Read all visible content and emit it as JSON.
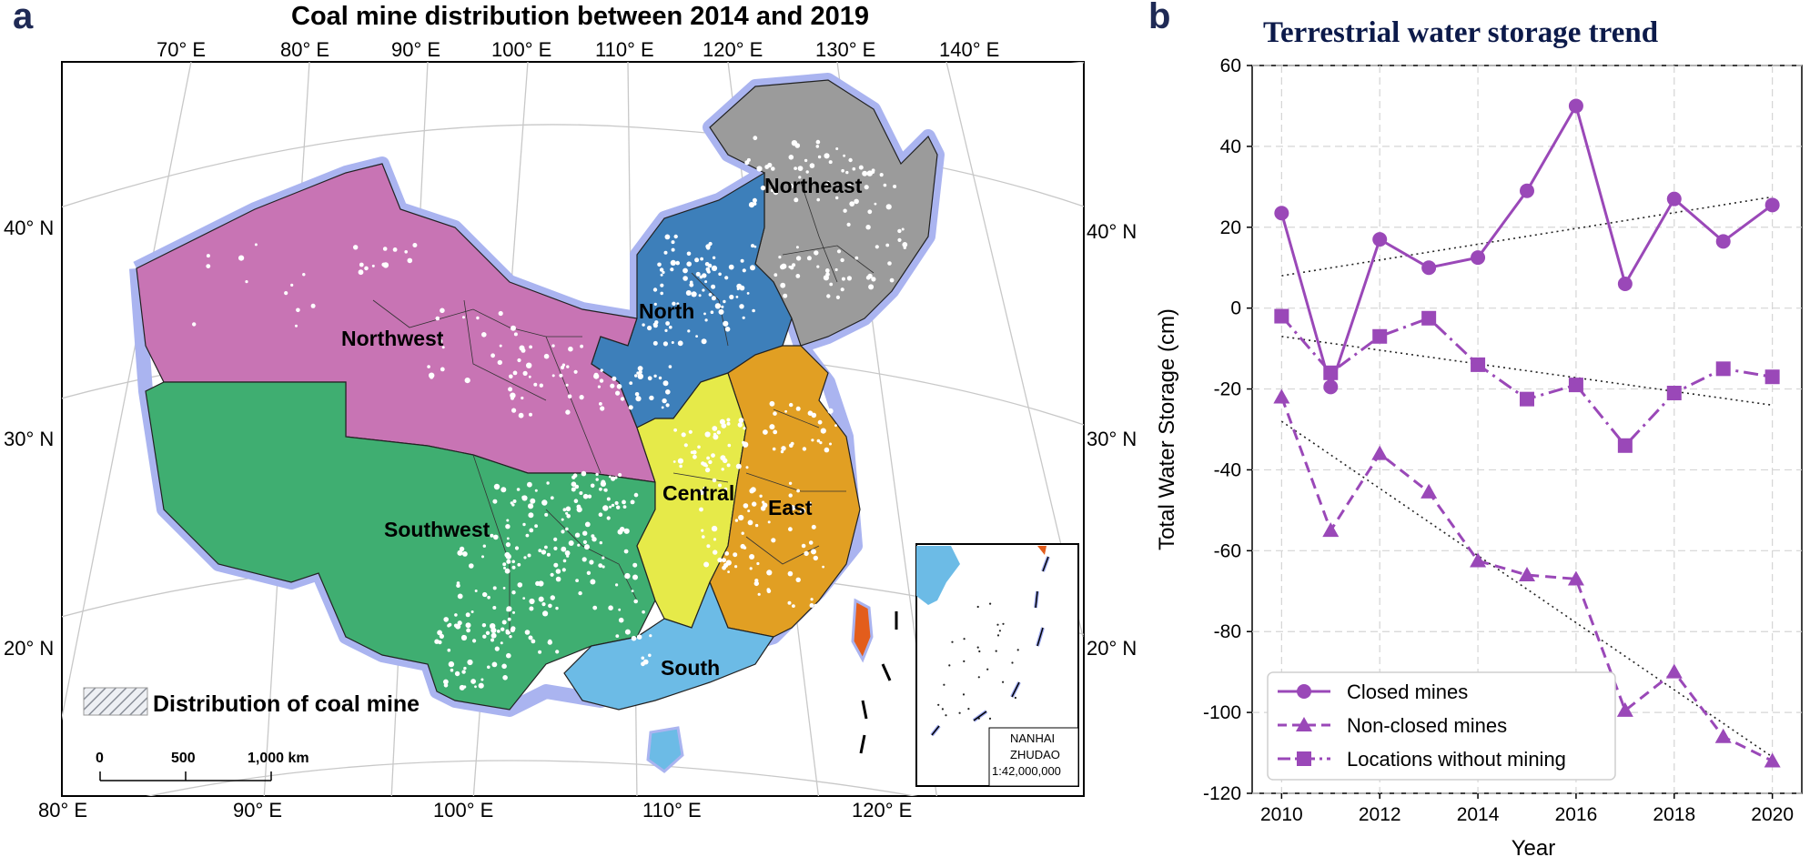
{
  "panel_a": {
    "letter": "a",
    "title": "Coal mine distribution between 2014 and 2019",
    "lon_labels_top": [
      "70° E",
      "80° E",
      "90° E",
      "100° E",
      "110° E",
      "120° E",
      "130° E",
      "140° E"
    ],
    "lon_labels_bottom": [
      "80° E",
      "90° E",
      "100° E",
      "110° E",
      "120° E"
    ],
    "lat_labels_left": [
      "40° N",
      "30° N",
      "20° N"
    ],
    "lat_labels_right": [
      "40° N",
      "30° N",
      "20° N"
    ],
    "regions": [
      {
        "name": "Northeast",
        "color": "#9b9b9b"
      },
      {
        "name": "North",
        "color": "#3d7fba"
      },
      {
        "name": "Northwest",
        "color": "#c874b4"
      },
      {
        "name": "Central",
        "color": "#e6ea49"
      },
      {
        "name": "East",
        "color": "#e19f23"
      },
      {
        "name": "Southwest",
        "color": "#3fae71"
      },
      {
        "name": "South",
        "color": "#6cbbe6"
      }
    ],
    "border_glow_color": "#aab4f0",
    "legend_label": "Distribution of coal mine",
    "scale_bar": {
      "labels": [
        "0",
        "500",
        "1,000 km"
      ]
    },
    "inset": {
      "line1": "NANHAI",
      "line2": "ZHUDAO",
      "line3": "1:42,000,000"
    }
  },
  "panel_b": {
    "letter": "b",
    "title": "Terrestrial water storage trend",
    "chart_data": {
      "type": "line",
      "title": "Terrestrial water storage trend",
      "xlabel": "Year",
      "ylabel": "Total Water Storage (cm)",
      "x": [
        2010,
        2011,
        2012,
        2013,
        2014,
        2015,
        2016,
        2017,
        2018,
        2019,
        2020
      ],
      "xticks": [
        2010,
        2012,
        2014,
        2016,
        2018,
        2020
      ],
      "xlim": [
        2009.4,
        2020.6
      ],
      "ylim": [
        -120,
        60
      ],
      "yticks": [
        60,
        40,
        20,
        0,
        -20,
        -40,
        -60,
        -80,
        -100,
        -120
      ],
      "grid": true,
      "legend_position": "lower-left",
      "color": "#9a48b8",
      "series": [
        {
          "name": "Closed mines",
          "marker": "circle",
          "linestyle": "solid",
          "values": [
            23.5,
            -19.5,
            17,
            10,
            12.5,
            29,
            50,
            6,
            27,
            16.5,
            25.5
          ],
          "trend": [
            8,
            27.5
          ]
        },
        {
          "name": "Non-closed mines",
          "marker": "triangle",
          "linestyle": "dashed",
          "values": [
            -22,
            -55,
            -36,
            -45.5,
            -62.5,
            -66,
            -67,
            -99.5,
            -90,
            -106,
            -112
          ],
          "trend": [
            -28,
            -111
          ]
        },
        {
          "name": "Locations without mining",
          "marker": "square",
          "linestyle": "dashdot",
          "values": [
            -2,
            -16,
            -7,
            -2.5,
            -14,
            -22.5,
            -19,
            -34,
            -21,
            -15,
            -17
          ],
          "trend": [
            -7,
            -24
          ]
        }
      ]
    }
  }
}
